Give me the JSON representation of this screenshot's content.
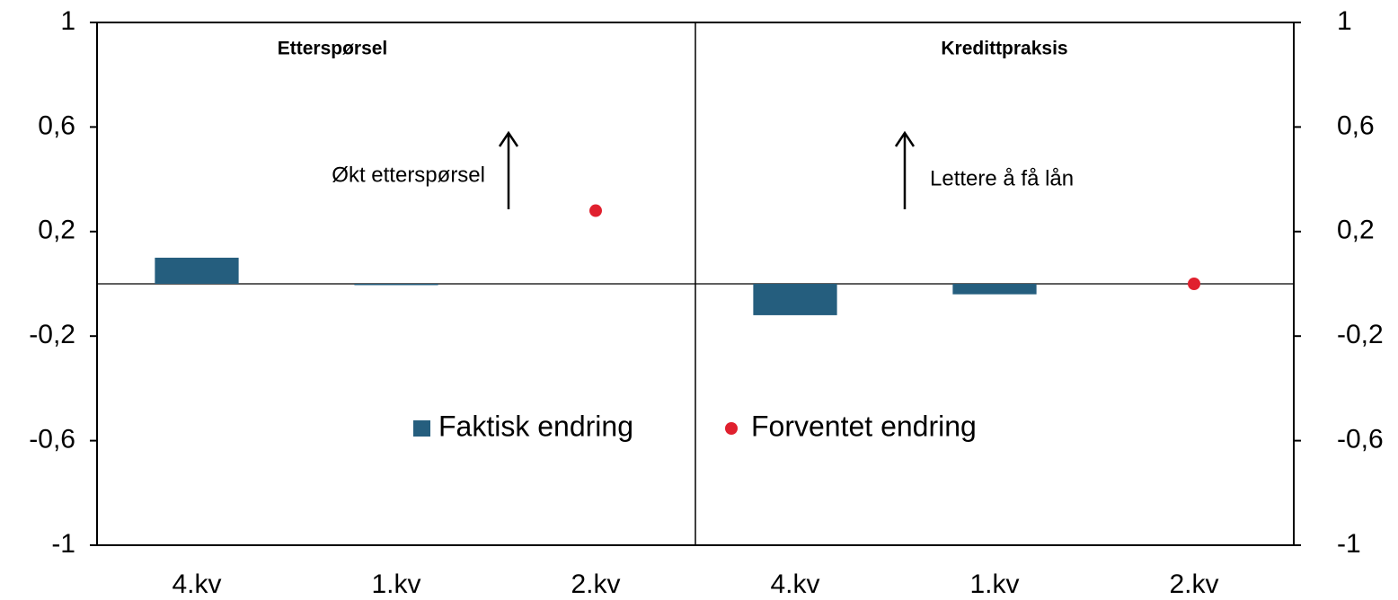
{
  "chart_data": {
    "type": "bar",
    "annotations": {
      "left_panel": "Etterspørsel",
      "right_panel": "Kredittpraksis",
      "left_arrow": "Økt etterspørsel",
      "right_arrow": "Lettere å få lån"
    },
    "categories": [
      "4.kv",
      "1.kv",
      "2.kv",
      "4.kv",
      "1.kv",
      "2.kv"
    ],
    "series": [
      {
        "name": "Faktisk endring",
        "color": "#255e7e",
        "marker": "bar",
        "values": [
          0.1,
          -0.005,
          null,
          -0.12,
          -0.04,
          null
        ]
      },
      {
        "name": "Forventet endring",
        "color": "#e0202e",
        "marker": "dot",
        "values": [
          null,
          null,
          0.28,
          null,
          null,
          0
        ]
      }
    ],
    "ylim": [
      -1,
      1
    ],
    "yticks": [
      -1,
      {
        "value": -0.6,
        "label": "-0,6"
      },
      {
        "value": -0.2,
        "label": "-0,2"
      },
      {
        "value": 0.2,
        "label": "0,2"
      },
      {
        "value": 0.6,
        "label": "0,6"
      },
      1
    ],
    "y2lim": [
      -1,
      1
    ],
    "y2ticks": [
      -1,
      {
        "value": -0.6,
        "label": "-0,6"
      },
      {
        "value": -0.2,
        "label": "-0,2"
      },
      {
        "value": 0.2,
        "label": "0,2"
      },
      {
        "value": 0.6,
        "label": "0,6"
      },
      1
    ],
    "grid": false
  }
}
